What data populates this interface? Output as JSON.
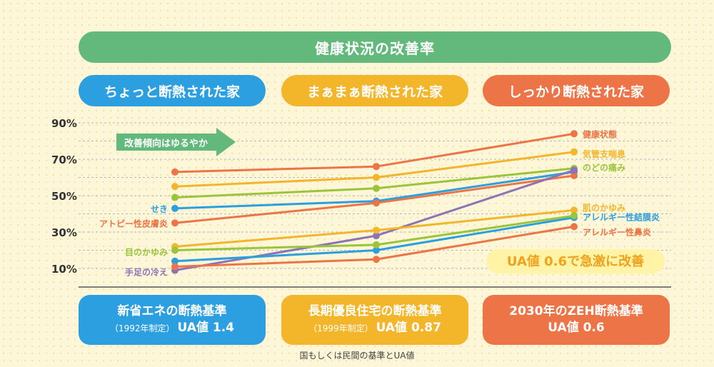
{
  "title": "健康状況の改善率",
  "columns": [
    {
      "label": "ちょっと断熱された家"
    },
    {
      "label": "まぁまぁ断熱された家"
    },
    {
      "label": "しっかり断熱された家"
    }
  ],
  "standards": [
    {
      "name": "新省エネの断熱基準",
      "note": "（1992年制定）",
      "ua": "UA値 1.4"
    },
    {
      "name": "長期優良住宅の断熱基準",
      "note": "（1999年制定）",
      "ua": "UA値 0.87"
    },
    {
      "name": "2030年のZEH断熱基準",
      "note": "",
      "ua": "UA値 0.6"
    }
  ],
  "footnote": "国もしくは民間の基準とUA値",
  "arrow_label": "改善傾向はゆるやか",
  "callout": "UA値 0.6で急激に改善",
  "colors": {
    "green": "#63b97c",
    "blue": "#2c9fe0",
    "yellow": "#f3b52a",
    "orange": "#ed7446",
    "purple": "#8c73b8",
    "lime": "#9ac53a",
    "callout_bg": "#fff3a6",
    "callout_text": "#f0a21f"
  },
  "chart_data": {
    "type": "line",
    "categories": [
      "新省エネの断熱基準",
      "長期優良住宅の断熱基準",
      "2030年のZEH断熱基準"
    ],
    "y_ticks": [
      "90%",
      "70%",
      "50%",
      "30%",
      "10%"
    ],
    "ylim": [
      5,
      95
    ],
    "grid": true,
    "series": [
      {
        "name": "健康状態",
        "label_side": "right",
        "color": "#ed7446",
        "values": [
          63,
          66,
          84
        ]
      },
      {
        "name": "気管支喘息",
        "label_side": "right",
        "color": "#f3b52a",
        "values": [
          55,
          60,
          74
        ]
      },
      {
        "name": "のどの痛み",
        "label_side": "right",
        "color": "#9ac53a",
        "values": [
          49,
          54,
          65
        ]
      },
      {
        "name": "せき",
        "label_side": "left",
        "color": "#2c9fe0",
        "values": [
          43,
          47,
          63
        ]
      },
      {
        "name": "アトピー性皮膚炎",
        "label_side": "left",
        "color": "#ed7446",
        "values": [
          35,
          46,
          61
        ]
      },
      {
        "name": "手足の冷え",
        "label_side": "left",
        "color": "#8c73b8",
        "values": [
          9,
          28,
          64
        ]
      },
      {
        "name": "肌のかゆみ",
        "label_side": "right",
        "color": "#f3b52a",
        "values": [
          22,
          31,
          42
        ]
      },
      {
        "name": "アレルギー性結膜炎",
        "label_side": "right",
        "color": "#2c9fe0",
        "values": [
          14,
          20,
          38
        ]
      },
      {
        "name": "目のかゆみ",
        "label_side": "left",
        "color": "#9ac53a",
        "values": [
          20,
          23,
          39
        ]
      },
      {
        "name": "アレルギー性鼻炎",
        "label_side": "right",
        "color": "#ed7446",
        "values": [
          11,
          15,
          33
        ]
      }
    ]
  }
}
